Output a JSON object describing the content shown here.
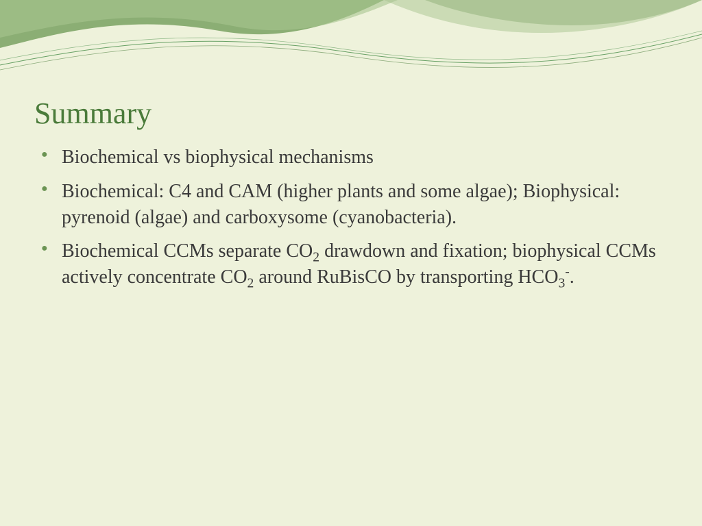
{
  "slide": {
    "title": "Summary",
    "bullets": [
      {
        "html": "Biochemical vs biophysical mechanisms"
      },
      {
        "html": "Biochemical: C4 and CAM (higher plants and some algae); Biophysical: pyrenoid (algae) and carboxysome (cyanobacteria)."
      },
      {
        "html": "Biochemical CCMs separate CO<sub>2</sub> drawdown and fixation; biophysical CCMs actively concentrate CO<sub>2</sub> around RuBisCO by transporting HCO<sub>3</sub><sup>-</sup>."
      }
    ]
  },
  "theme": {
    "background_color": "#eef2db",
    "title_color": "#4a7b3a",
    "body_text_color": "#3a3a3a",
    "bullet_color": "#6b9453",
    "swoosh_dark": "#7fa668",
    "swoosh_mid": "#a8c48f",
    "swoosh_line1": "#2e7d32",
    "swoosh_line2": "#4a7b3a",
    "title_fontsize": 44,
    "body_fontsize": 28,
    "font_family": "Georgia, serif"
  }
}
